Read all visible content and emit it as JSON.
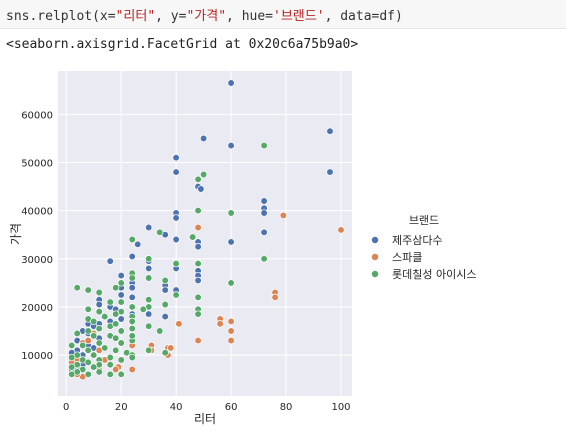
{
  "cell": {
    "code": {
      "fn": "sns.relplot(x=",
      "x_str": "\"리터\"",
      "sep1": ", y=",
      "y_str": "\"가격\"",
      "sep2": ", hue=",
      "hue_str": "'브랜드'",
      "sep3": ", data=df)"
    },
    "output": "<seaborn.axisgrid.FacetGrid at 0x20c6a75b9a0>"
  },
  "chart_data": {
    "type": "scatter",
    "xlabel": "리터",
    "ylabel": "가격",
    "xlim": [
      -3,
      104
    ],
    "ylim": [
      1500,
      69000
    ],
    "xticks": [
      0,
      20,
      40,
      60,
      80,
      100
    ],
    "yticks": [
      10000,
      20000,
      30000,
      40000,
      50000,
      60000
    ],
    "ytick_labels": [
      "10000",
      "20000",
      "30000",
      "40000",
      "50000",
      "60000"
    ],
    "grid": true,
    "legend_position": "right",
    "legend_title": "브랜드",
    "series": [
      {
        "name": "제주삼다수",
        "color": "#4c72b0",
        "points": [
          [
            60,
            66500
          ],
          [
            96,
            56500
          ],
          [
            50,
            55000
          ],
          [
            40,
            51000
          ],
          [
            48,
            45000
          ],
          [
            49,
            44500
          ],
          [
            60,
            53500
          ],
          [
            96,
            48000
          ],
          [
            40,
            48000
          ],
          [
            72,
            42000
          ],
          [
            72,
            40500
          ],
          [
            72,
            39500
          ],
          [
            40,
            39500
          ],
          [
            40,
            38500
          ],
          [
            30,
            36500
          ],
          [
            36,
            35000
          ],
          [
            40,
            34000
          ],
          [
            48,
            33500
          ],
          [
            48,
            32500
          ],
          [
            72,
            35500
          ],
          [
            60,
            33500
          ],
          [
            26,
            33000
          ],
          [
            24,
            30500
          ],
          [
            30,
            29500
          ],
          [
            30,
            28000
          ],
          [
            40,
            28000
          ],
          [
            48,
            27500
          ],
          [
            48,
            26500
          ],
          [
            20,
            26500
          ],
          [
            48,
            25500
          ],
          [
            16,
            29500
          ],
          [
            24,
            25000
          ],
          [
            24,
            24000
          ],
          [
            36,
            24500
          ],
          [
            36,
            23500
          ],
          [
            40,
            23500
          ],
          [
            20,
            24000
          ],
          [
            20,
            22500
          ],
          [
            24,
            22000
          ],
          [
            12,
            21500
          ],
          [
            12,
            20500
          ],
          [
            16,
            20000
          ],
          [
            18,
            19500
          ],
          [
            20,
            19000
          ],
          [
            24,
            18500
          ],
          [
            30,
            18500
          ],
          [
            36,
            18000
          ],
          [
            20,
            17500
          ],
          [
            16,
            17000
          ],
          [
            12,
            16500
          ],
          [
            8,
            16500
          ],
          [
            10,
            16000
          ],
          [
            12,
            15500
          ],
          [
            6,
            15000
          ],
          [
            8,
            14500
          ],
          [
            10,
            14000
          ],
          [
            12,
            13500
          ],
          [
            4,
            13000
          ],
          [
            6,
            12500
          ],
          [
            8,
            12000
          ],
          [
            10,
            11500
          ],
          [
            4,
            11000
          ],
          [
            2,
            10500
          ],
          [
            6,
            10000
          ],
          [
            4,
            9500
          ],
          [
            2,
            9000
          ],
          [
            4,
            8500
          ],
          [
            6,
            8000
          ],
          [
            4,
            7500
          ],
          [
            2,
            7000
          ],
          [
            4,
            6500
          ]
        ]
      },
      {
        "name": "스파클",
        "color": "#dd8452",
        "points": [
          [
            100,
            36000
          ],
          [
            79,
            39000
          ],
          [
            48,
            36500
          ],
          [
            76,
            23000
          ],
          [
            76,
            22000
          ],
          [
            60,
            17000
          ],
          [
            56,
            17500
          ],
          [
            56,
            16500
          ],
          [
            60,
            15000
          ],
          [
            60,
            13000
          ],
          [
            48,
            13000
          ],
          [
            41,
            16500
          ],
          [
            31,
            12000
          ],
          [
            31,
            11000
          ],
          [
            37,
            11500
          ],
          [
            37,
            10000
          ],
          [
            38,
            11500
          ],
          [
            24,
            12000
          ],
          [
            24,
            7000
          ],
          [
            19,
            7500
          ],
          [
            18,
            7000
          ],
          [
            12,
            7000
          ],
          [
            8,
            6000
          ],
          [
            6,
            5500
          ],
          [
            4,
            6000
          ],
          [
            4,
            9000
          ],
          [
            2,
            8500
          ],
          [
            6,
            12500
          ],
          [
            8,
            13000
          ],
          [
            10,
            14500
          ],
          [
            12,
            11000
          ],
          [
            14,
            9000
          ],
          [
            16,
            8000
          ]
        ]
      },
      {
        "name": "롯데칠성 아이시스",
        "color": "#55a868",
        "points": [
          [
            72,
            53500
          ],
          [
            50,
            47500
          ],
          [
            48,
            46500
          ],
          [
            48,
            40000
          ],
          [
            60,
            39500
          ],
          [
            46,
            34500
          ],
          [
            34,
            35500
          ],
          [
            24,
            34000
          ],
          [
            30,
            30000
          ],
          [
            72,
            30000
          ],
          [
            60,
            25000
          ],
          [
            40,
            29000
          ],
          [
            48,
            29000
          ],
          [
            30,
            26000
          ],
          [
            36,
            25500
          ],
          [
            48,
            22000
          ],
          [
            40,
            22500
          ],
          [
            48,
            19500
          ],
          [
            48,
            18500
          ],
          [
            24,
            27000
          ],
          [
            24,
            26000
          ],
          [
            20,
            25000
          ],
          [
            18,
            24000
          ],
          [
            12,
            23000
          ],
          [
            4,
            24000
          ],
          [
            8,
            23500
          ],
          [
            30,
            21500
          ],
          [
            36,
            20500
          ],
          [
            30,
            20000
          ],
          [
            20,
            21000
          ],
          [
            16,
            21000
          ],
          [
            24,
            20000
          ],
          [
            20,
            19000
          ],
          [
            18,
            18500
          ],
          [
            24,
            18000
          ],
          [
            28,
            19500
          ],
          [
            12,
            19000
          ],
          [
            14,
            18000
          ],
          [
            8,
            17500
          ],
          [
            10,
            17000
          ],
          [
            24,
            17000
          ],
          [
            16,
            16000
          ],
          [
            12,
            15500
          ],
          [
            20,
            15000
          ],
          [
            24,
            15500
          ],
          [
            30,
            16000
          ],
          [
            34,
            15000
          ],
          [
            8,
            15000
          ],
          [
            4,
            14500
          ],
          [
            10,
            14000
          ],
          [
            16,
            14000
          ],
          [
            18,
            13500
          ],
          [
            24,
            13000
          ],
          [
            20,
            12500
          ],
          [
            12,
            12500
          ],
          [
            6,
            12000
          ],
          [
            2,
            12000
          ],
          [
            8,
            11000
          ],
          [
            14,
            11500
          ],
          [
            18,
            11000
          ],
          [
            22,
            10500
          ],
          [
            24,
            10000
          ],
          [
            10,
            10000
          ],
          [
            4,
            10000
          ],
          [
            2,
            9500
          ],
          [
            6,
            9000
          ],
          [
            12,
            9000
          ],
          [
            16,
            9500
          ],
          [
            20,
            9000
          ],
          [
            24,
            9500
          ],
          [
            8,
            8500
          ],
          [
            4,
            8000
          ],
          [
            2,
            7500
          ],
          [
            12,
            8000
          ],
          [
            16,
            8000
          ],
          [
            6,
            7000
          ],
          [
            10,
            7500
          ],
          [
            4,
            6500
          ],
          [
            2,
            6000
          ],
          [
            8,
            6000
          ],
          [
            12,
            6500
          ],
          [
            16,
            6000
          ],
          [
            20,
            6000
          ],
          [
            30,
            11000
          ],
          [
            36,
            10500
          ],
          [
            24,
            14000
          ],
          [
            18,
            16500
          ],
          [
            8,
            19500
          ]
        ]
      }
    ]
  }
}
